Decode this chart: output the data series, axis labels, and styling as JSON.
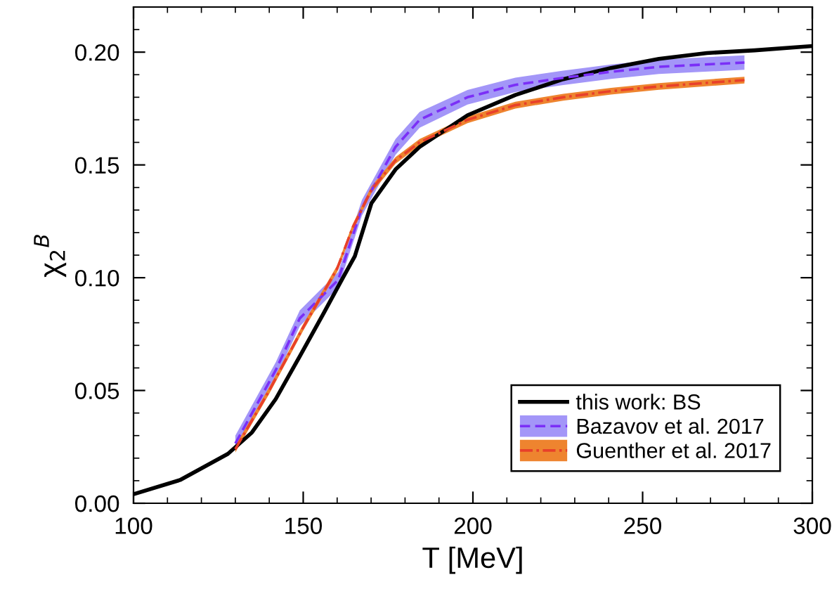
{
  "chart_data": {
    "type": "line",
    "xlabel": "T [MeV]",
    "ylabel": "χ$_{2}$$^{B}$",
    "xlim": [
      100,
      300
    ],
    "xticks": [
      100,
      150,
      200,
      250,
      300
    ],
    "ylim": [
      0,
      0.22
    ],
    "yticks": [
      {
        "value": 0,
        "label": "0.00"
      },
      {
        "value": 0.05,
        "label": "0.05"
      },
      {
        "value": 0.1,
        "label": "0.10"
      },
      {
        "value": 0.15,
        "label": "0.15"
      },
      {
        "value": 0.2,
        "label": "0.20"
      }
    ],
    "grid": false,
    "legend": "bottom right",
    "series": [
      {
        "name": "Bazavov et al. 2017",
        "color": "#7b2ff7",
        "line_style": "dashed",
        "x": [
          130,
          141.9,
          149,
          160.3,
          167.3,
          177.2,
          184.3,
          198.4,
          212.5,
          226.6,
          240.7,
          254.8,
          280
        ],
        "values": [
          0.0265,
          0.059,
          0.082,
          0.099,
          0.131,
          0.158,
          0.17,
          0.18,
          0.1855,
          0.1886,
          0.1913,
          0.1935,
          0.1954
        ],
        "lower": [
          0.023,
          0.0555,
          0.0785,
          0.0955,
          0.1275,
          0.1545,
          0.1665,
          0.1768,
          0.1823,
          0.1854,
          0.1881,
          0.1903,
          0.1922
        ],
        "upper": [
          0.03,
          0.0625,
          0.0855,
          0.1025,
          0.1345,
          0.1615,
          0.1735,
          0.1832,
          0.1887,
          0.1918,
          0.1945,
          0.1967,
          0.1986
        ]
      },
      {
        "name": "Guenther et al. 2017",
        "color": "#e8402a",
        "line_style": "dashdot",
        "x": [
          130,
          140,
          150,
          160,
          164.5,
          170.1,
          177.2,
          184.3,
          198.4,
          212.5,
          226.6,
          240.7,
          254.8,
          280
        ],
        "values": [
          0.024,
          0.05,
          0.078,
          0.104,
          0.122,
          0.139,
          0.152,
          0.16,
          0.17,
          0.1765,
          0.18,
          0.1827,
          0.1848,
          0.1876
        ],
        "lower": [
          0.0225,
          0.0485,
          0.0765,
          0.1025,
          0.1205,
          0.1375,
          0.1505,
          0.1585,
          0.1685,
          0.175,
          0.1785,
          0.1812,
          0.1833,
          0.1861
        ],
        "upper": [
          0.0255,
          0.0515,
          0.0795,
          0.1055,
          0.1235,
          0.1405,
          0.1535,
          0.1615,
          0.1715,
          0.178,
          0.1815,
          0.1842,
          0.1863,
          0.1891
        ]
      },
      {
        "name": "this work: BS",
        "color": "#000000",
        "line_style": "solid",
        "x": [
          100,
          113.7,
          127.8,
          134.9,
          141.9,
          149,
          156,
          161.7,
          165.2,
          170.1,
          177.2,
          184.3,
          198.4,
          212.5,
          226.6,
          240.7,
          254.8,
          268.9,
          283,
          300
        ],
        "values": [
          0.004,
          0.0103,
          0.0219,
          0.0314,
          0.0462,
          0.0652,
          0.0842,
          0.1,
          0.1095,
          0.133,
          0.148,
          0.158,
          0.172,
          0.181,
          0.188,
          0.193,
          0.197,
          0.1996,
          0.2008,
          0.2027
        ]
      }
    ]
  }
}
